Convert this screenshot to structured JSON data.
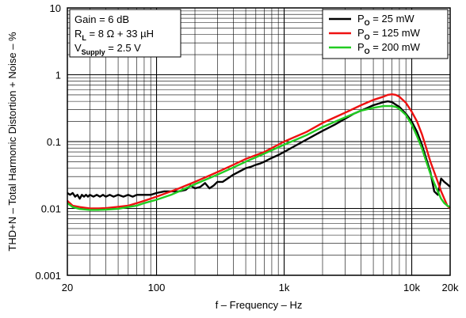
{
  "chart_data": {
    "type": "line",
    "xlabel": "f – Frequency – Hz",
    "ylabel": "THD+N – Total Harmonic Distortion + Noise – %",
    "xscale": "log",
    "yscale": "log",
    "xlim": [
      20,
      20000
    ],
    "ylim": [
      0.001,
      10
    ],
    "grid": true,
    "x_ticks": [
      {
        "value": 20,
        "label": "20"
      },
      {
        "value": 100,
        "label": "100"
      },
      {
        "value": 1000,
        "label": "1k"
      },
      {
        "value": 10000,
        "label": "10k"
      },
      {
        "value": 20000,
        "label": "20k"
      }
    ],
    "y_ticks": [
      {
        "value": 10,
        "label": "10"
      },
      {
        "value": 1,
        "label": "1"
      },
      {
        "value": 0.1,
        "label": "0.1"
      },
      {
        "value": 0.01,
        "label": "0.01"
      },
      {
        "value": 0.001,
        "label": "0.001"
      }
    ],
    "annotation": {
      "line1": "Gain = 6 dB",
      "line2_main": "R",
      "line2_sub": "L",
      "line2_rest": " = 8 Ω + 33 µH",
      "line3_main": "V",
      "line3_sub": "Supply",
      "line3_rest": " = 2.5 V"
    },
    "legend_position": "top-right",
    "series": [
      {
        "name_main": "P",
        "name_sub": "O",
        "name_rest": " = 25 mW",
        "color": "#000000",
        "points": [
          [
            20,
            0.017
          ],
          [
            21,
            0.016
          ],
          [
            22,
            0.017
          ],
          [
            23,
            0.015
          ],
          [
            24,
            0.016
          ],
          [
            25,
            0.014
          ],
          [
            26,
            0.016
          ],
          [
            27,
            0.015
          ],
          [
            28,
            0.016
          ],
          [
            29,
            0.015
          ],
          [
            30,
            0.016
          ],
          [
            32,
            0.015
          ],
          [
            34,
            0.016
          ],
          [
            36,
            0.015
          ],
          [
            38,
            0.016
          ],
          [
            40,
            0.015
          ],
          [
            43,
            0.016
          ],
          [
            46,
            0.015
          ],
          [
            50,
            0.016
          ],
          [
            55,
            0.015
          ],
          [
            60,
            0.016
          ],
          [
            65,
            0.015
          ],
          [
            70,
            0.016
          ],
          [
            80,
            0.016
          ],
          [
            90,
            0.016
          ],
          [
            100,
            0.017
          ],
          [
            115,
            0.018
          ],
          [
            130,
            0.018
          ],
          [
            150,
            0.018
          ],
          [
            170,
            0.019
          ],
          [
            185,
            0.022
          ],
          [
            200,
            0.02
          ],
          [
            220,
            0.021
          ],
          [
            240,
            0.024
          ],
          [
            260,
            0.02
          ],
          [
            280,
            0.022
          ],
          [
            300,
            0.025
          ],
          [
            330,
            0.025
          ],
          [
            360,
            0.028
          ],
          [
            400,
            0.032
          ],
          [
            450,
            0.036
          ],
          [
            500,
            0.04
          ],
          [
            550,
            0.042
          ],
          [
            600,
            0.045
          ],
          [
            650,
            0.047
          ],
          [
            700,
            0.05
          ],
          [
            800,
            0.057
          ],
          [
            900,
            0.063
          ],
          [
            1000,
            0.07
          ],
          [
            1200,
            0.085
          ],
          [
            1400,
            0.1
          ],
          [
            1600,
            0.115
          ],
          [
            1800,
            0.13
          ],
          [
            2000,
            0.145
          ],
          [
            2500,
            0.18
          ],
          [
            3000,
            0.22
          ],
          [
            3500,
            0.26
          ],
          [
            4000,
            0.29
          ],
          [
            4500,
            0.32
          ],
          [
            5000,
            0.35
          ],
          [
            5500,
            0.37
          ],
          [
            6000,
            0.39
          ],
          [
            6500,
            0.4
          ],
          [
            7000,
            0.39
          ],
          [
            8000,
            0.33
          ],
          [
            9000,
            0.26
          ],
          [
            10000,
            0.2
          ],
          [
            11000,
            0.14
          ],
          [
            12000,
            0.09
          ],
          [
            13000,
            0.055
          ],
          [
            14000,
            0.035
          ],
          [
            15000,
            0.018
          ],
          [
            16000,
            0.016
          ],
          [
            17000,
            0.028
          ],
          [
            18000,
            0.025
          ],
          [
            19000,
            0.023
          ],
          [
            20000,
            0.021
          ]
        ]
      },
      {
        "name_main": "P",
        "name_sub": "O",
        "name_rest": " = 125 mW",
        "color": "#ee1111",
        "points": [
          [
            20,
            0.013
          ],
          [
            22,
            0.011
          ],
          [
            25,
            0.0105
          ],
          [
            28,
            0.0102
          ],
          [
            30,
            0.01
          ],
          [
            35,
            0.01
          ],
          [
            40,
            0.0101
          ],
          [
            50,
            0.0106
          ],
          [
            60,
            0.011
          ],
          [
            70,
            0.012
          ],
          [
            80,
            0.013
          ],
          [
            100,
            0.015
          ],
          [
            130,
            0.018
          ],
          [
            150,
            0.02
          ],
          [
            200,
            0.025
          ],
          [
            300,
            0.035
          ],
          [
            400,
            0.045
          ],
          [
            500,
            0.055
          ],
          [
            700,
            0.07
          ],
          [
            1000,
            0.1
          ],
          [
            1500,
            0.14
          ],
          [
            2000,
            0.19
          ],
          [
            3000,
            0.27
          ],
          [
            4000,
            0.35
          ],
          [
            5000,
            0.42
          ],
          [
            6000,
            0.47
          ],
          [
            6500,
            0.5
          ],
          [
            7000,
            0.51
          ],
          [
            7500,
            0.5
          ],
          [
            8000,
            0.47
          ],
          [
            9000,
            0.38
          ],
          [
            10000,
            0.28
          ],
          [
            11000,
            0.2
          ],
          [
            12000,
            0.13
          ],
          [
            13000,
            0.08
          ],
          [
            14000,
            0.05
          ],
          [
            15000,
            0.035
          ],
          [
            16000,
            0.025
          ],
          [
            17000,
            0.018
          ],
          [
            18000,
            0.014
          ],
          [
            19000,
            0.011
          ],
          [
            20000,
            0.01
          ]
        ]
      },
      {
        "name_main": "P",
        "name_sub": "O",
        "name_rest": " = 200 mW",
        "color": "#22cc22",
        "points": [
          [
            20,
            0.012
          ],
          [
            22,
            0.0105
          ],
          [
            25,
            0.0098
          ],
          [
            30,
            0.0095
          ],
          [
            35,
            0.0095
          ],
          [
            40,
            0.0096
          ],
          [
            50,
            0.0099
          ],
          [
            60,
            0.0105
          ],
          [
            70,
            0.011
          ],
          [
            80,
            0.012
          ],
          [
            100,
            0.0135
          ],
          [
            130,
            0.016
          ],
          [
            150,
            0.018
          ],
          [
            200,
            0.023
          ],
          [
            300,
            0.032
          ],
          [
            400,
            0.041
          ],
          [
            500,
            0.05
          ],
          [
            700,
            0.066
          ],
          [
            1000,
            0.09
          ],
          [
            1500,
            0.125
          ],
          [
            2000,
            0.165
          ],
          [
            3000,
            0.23
          ],
          [
            4000,
            0.29
          ],
          [
            5000,
            0.32
          ],
          [
            6000,
            0.34
          ],
          [
            7000,
            0.34
          ],
          [
            7500,
            0.33
          ],
          [
            8000,
            0.31
          ],
          [
            9000,
            0.25
          ],
          [
            10000,
            0.18
          ],
          [
            11000,
            0.12
          ],
          [
            12000,
            0.08
          ],
          [
            13000,
            0.05
          ],
          [
            14000,
            0.033
          ],
          [
            15000,
            0.024
          ],
          [
            16000,
            0.018
          ],
          [
            17000,
            0.014
          ],
          [
            18000,
            0.012
          ],
          [
            19000,
            0.011
          ],
          [
            20000,
            0.0105
          ]
        ]
      }
    ]
  }
}
